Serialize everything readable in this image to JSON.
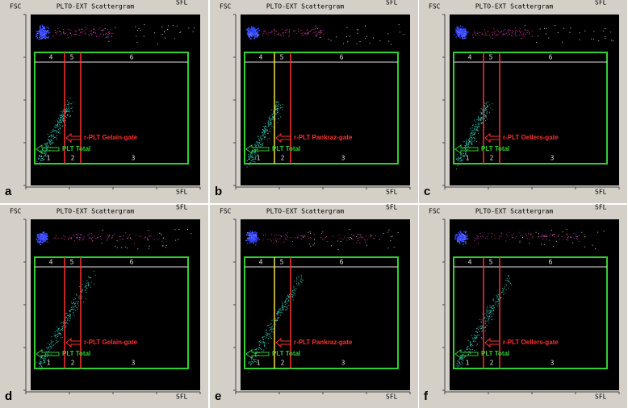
{
  "panels": [
    {
      "letter": "a",
      "title": "PLTO-EXT Scattergram",
      "y_axis": "FSC",
      "x_axis": "SFL",
      "gate_label": "r-PLT Gelain-gate",
      "total_label": "PLT Total",
      "regions": [
        "1",
        "2",
        "3",
        "4",
        "5",
        "6"
      ]
    },
    {
      "letter": "b",
      "title": "PLTO-EXT Scattergram",
      "y_axis": "FSC",
      "x_axis": "SFL",
      "gate_label": "r-PLT Pankraz-gate",
      "total_label": "PLT Total",
      "regions": [
        "1",
        "2",
        "3",
        "4",
        "5",
        "6"
      ]
    },
    {
      "letter": "c",
      "title": "PLTO-EXT Scattergram",
      "y_axis": "FSC",
      "x_axis": "SFL",
      "gate_label": "r-PLT Oellers-gate",
      "total_label": "PLT Total",
      "regions": [
        "1",
        "2",
        "3",
        "4",
        "5",
        "6"
      ]
    },
    {
      "letter": "d",
      "title": "PLTO-EXT Scattergram",
      "y_axis": "FSC",
      "x_axis": "SFL",
      "gate_label": "r-PLT Gelain-gate",
      "total_label": "PLT Total",
      "regions": [
        "1",
        "2",
        "3",
        "4",
        "5",
        "6"
      ]
    },
    {
      "letter": "e",
      "title": "PLTO-EXT Scattergram",
      "y_axis": "FSC",
      "x_axis": "SFL",
      "gate_label": "r-PLT Pankraz-gate",
      "total_label": "PLT Total",
      "regions": [
        "1",
        "2",
        "3",
        "4",
        "5",
        "6"
      ]
    },
    {
      "letter": "f",
      "title": "PLTO-EXT Scattergram",
      "y_axis": "FSC",
      "x_axis": "SFL",
      "gate_label": "r-PLT Oellers-gate",
      "total_label": "PLT Total",
      "regions": [
        "1",
        "2",
        "3",
        "4",
        "5",
        "6"
      ]
    }
  ]
}
